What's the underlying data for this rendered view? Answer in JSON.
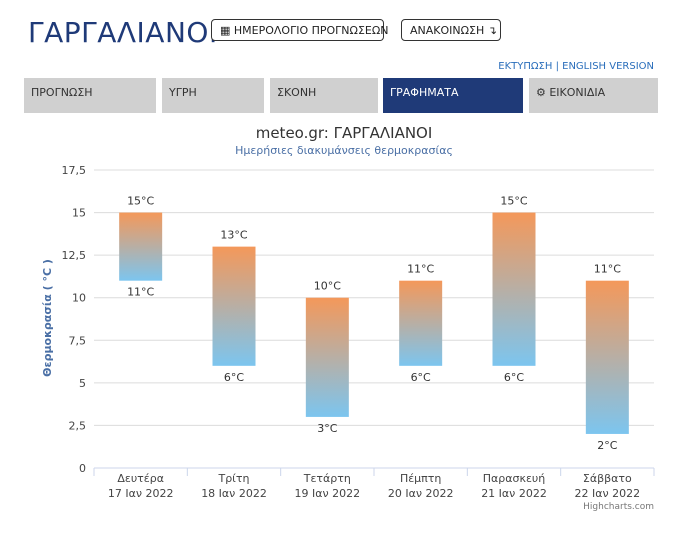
{
  "header": {
    "title": "ΓΑΡΓΑΛΙΑΝΟΙ",
    "calendar_button": "ΗΜΕΡΟΛΟΓΙΟ ΠΡΟΓΝΩΣΕΩΝ",
    "announcements_button": "ΑΝΑΚΟΙΝΩΣΗ ↴",
    "print_link": "ΕΚΤΥΠΩΣΗ",
    "separator": "|",
    "english_link": "ENGLISH VERSION"
  },
  "tabs": [
    {
      "label": "ΠΡΟΓΝΩΣΗ"
    },
    {
      "label": "ΥΓΡΗ"
    },
    {
      "label": "ΣΚΟΝΗ"
    },
    {
      "label": "ΓΡΑΦΗΜΑΤΑ"
    },
    {
      "label": "⚙ ΕΙΚΟΝΙΔΙΑ"
    }
  ],
  "colors": {
    "brand": "#1f3a78",
    "bar_top": "#f4985a",
    "bar_bottom": "#7cc5ef"
  },
  "credit": "Highcharts.com",
  "chart_data": {
    "type": "columnrange",
    "title": "meteo.gr: ΓΑΡΓΑΛΙΑΝΟΙ",
    "subtitle": "Ημερήσιες διακυμάνσεις θερμοκρασίας",
    "ylabel": "Θερμοκρασία ( °C )",
    "ylim": [
      0,
      17.5
    ],
    "yticks": [
      "0",
      "2,5",
      "5",
      "7,5",
      "10",
      "12,5",
      "15",
      "17,5"
    ],
    "unit": "°C",
    "categories": [
      {
        "day": "Δευτέρα",
        "date": "17 Ιαν 2022"
      },
      {
        "day": "Τρίτη",
        "date": "18 Ιαν 2022"
      },
      {
        "day": "Τετάρτη",
        "date": "19 Ιαν 2022"
      },
      {
        "day": "Πέμπτη",
        "date": "20 Ιαν 2022"
      },
      {
        "day": "Παρασκευή",
        "date": "21 Ιαν 2022"
      },
      {
        "day": "Σάββατο",
        "date": "22 Ιαν 2022"
      }
    ],
    "low": [
      11,
      6,
      3,
      6,
      6,
      2
    ],
    "high": [
      15,
      13,
      10,
      11,
      15,
      11
    ]
  }
}
